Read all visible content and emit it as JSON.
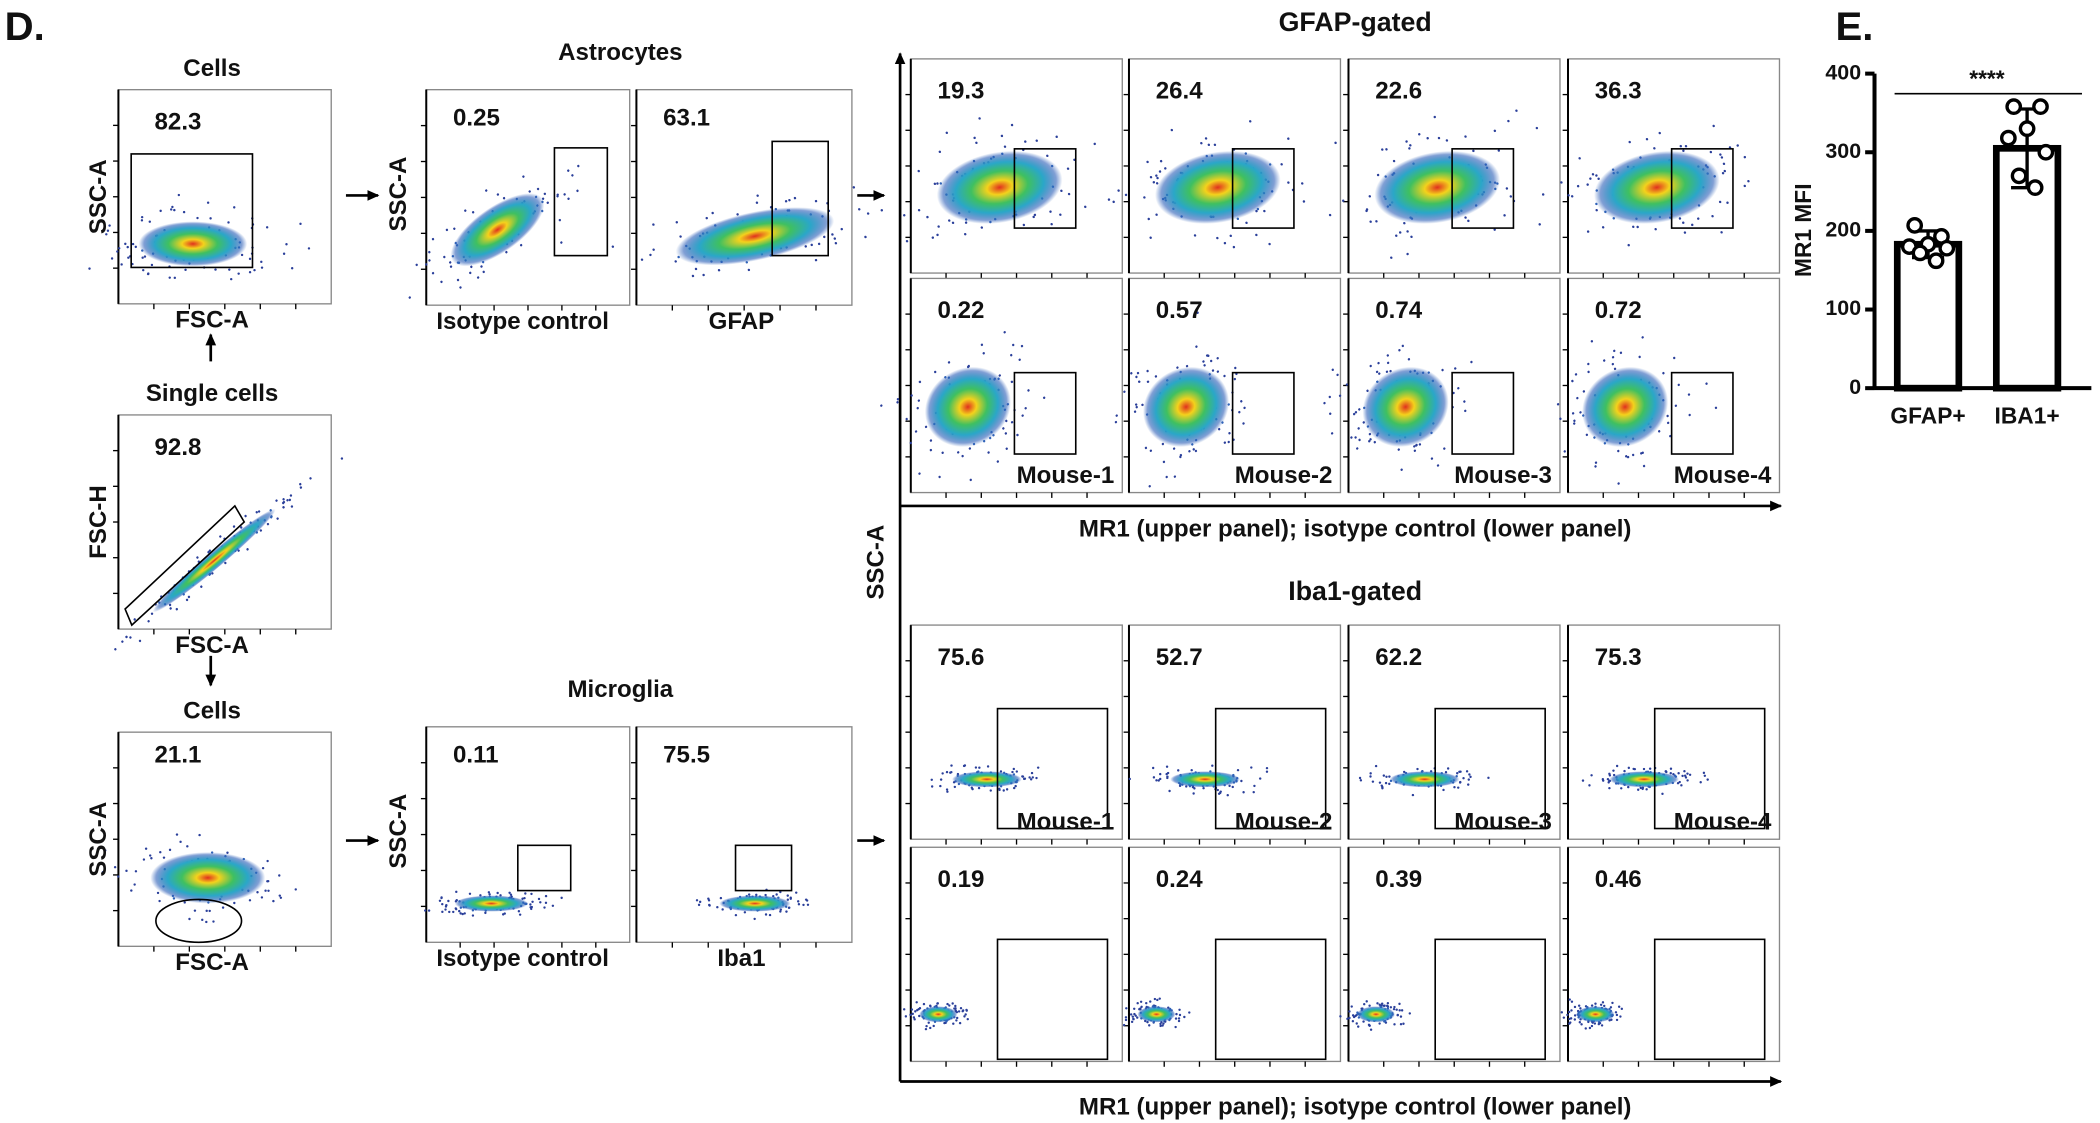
{
  "panel_d": {
    "label": "D.",
    "gating": [
      {
        "title": "Cells",
        "gate_percent": 82.3,
        "y_label": "SSC-A",
        "x_label": "FSC-A"
      },
      {
        "title": "Single cells",
        "gate_percent": 92.8,
        "y_label": "FSC-H",
        "x_label": "FSC-A"
      },
      {
        "title": "Cells",
        "gate_percent": 21.1,
        "y_label": "SSC-A",
        "x_label": "FSC-A"
      }
    ],
    "populations": [
      {
        "title": "Astrocytes",
        "y_label": "SSC-A",
        "plots": [
          {
            "gate_percent": 0.25,
            "x_label": "Isotype control"
          },
          {
            "gate_percent": 63.1,
            "x_label": "GFAP"
          }
        ]
      },
      {
        "title": "Microglia",
        "y_label": "SSC-A",
        "plots": [
          {
            "gate_percent": 0.11,
            "x_label": "Isotype control"
          },
          {
            "gate_percent": 75.5,
            "x_label": "Iba1"
          }
        ]
      }
    ],
    "mr1": {
      "y_label": "SSC-A",
      "groups": [
        {
          "title": "GFAP-gated",
          "x_label": "MR1 (upper panel); isotype control (lower panel)",
          "upper": [
            19.3,
            26.4,
            22.6,
            36.3
          ],
          "lower": [
            0.22,
            0.57,
            0.74,
            0.72
          ],
          "mice": [
            "Mouse-1",
            "Mouse-2",
            "Mouse-3",
            "Mouse-4"
          ]
        },
        {
          "title": "Iba1-gated",
          "x_label": "MR1 (upper panel); isotype control (lower panel)",
          "upper": [
            75.6,
            52.7,
            62.2,
            75.3
          ],
          "lower": [
            0.19,
            0.24,
            0.39,
            0.46
          ],
          "mice": [
            "Mouse-1",
            "Mouse-2",
            "Mouse-3",
            "Mouse-4"
          ]
        }
      ]
    }
  },
  "chart_data": {
    "type": "bar",
    "label": "E.",
    "y_label": "MR1 MFI",
    "annotation": "****",
    "categories": [
      "GFAP+",
      "IBA1+"
    ],
    "values": [
      183,
      305
    ],
    "errors": [
      17,
      50
    ],
    "points": [
      [
        207,
        193,
        183,
        180,
        178,
        172,
        162
      ],
      [
        358,
        358,
        330,
        318,
        300,
        270,
        255
      ]
    ],
    "color": "#ffffff",
    "ylim": [
      0,
      400
    ],
    "yticks": [
      0,
      100,
      200,
      300,
      400
    ]
  }
}
